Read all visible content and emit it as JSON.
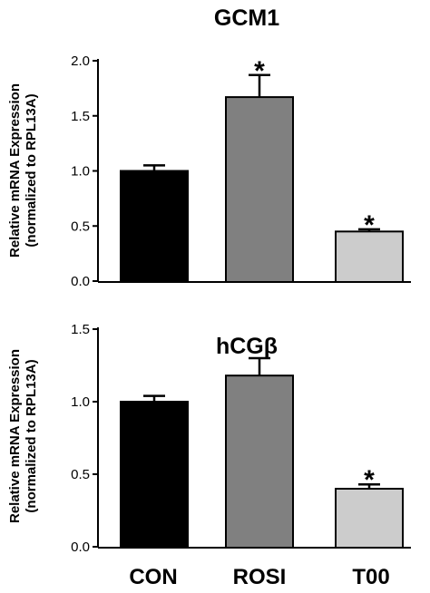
{
  "categories": [
    "CON",
    "ROSI",
    "T00"
  ],
  "chart_data": [
    {
      "type": "bar",
      "title": "GCM1",
      "ylabel": "Relative mRNA Expression",
      "ylabel_line2": "(normalized to RPL13A)",
      "categories": [
        "CON",
        "ROSI",
        "T00"
      ],
      "values": [
        1.0,
        1.67,
        0.45
      ],
      "errors": [
        0.05,
        0.2,
        0.02
      ],
      "significance": [
        "",
        "*",
        "*"
      ],
      "ylim": [
        0,
        2.0
      ],
      "yticks": [
        0.0,
        0.5,
        1.0,
        1.5,
        2.0
      ],
      "ytick_labels": [
        "0.0",
        "0.5",
        "1.0",
        "1.5",
        "2.0"
      ],
      "colors": [
        "#000000",
        "#808080",
        "#cccccc"
      ]
    },
    {
      "type": "bar",
      "title": "hCGβ",
      "ylabel": "Relative mRNA Expression",
      "ylabel_line2": "(normalized to RPL13A)",
      "categories": [
        "CON",
        "ROSI",
        "T00"
      ],
      "values": [
        1.0,
        1.18,
        0.4
      ],
      "errors": [
        0.04,
        0.12,
        0.03
      ],
      "significance": [
        "",
        "",
        "*"
      ],
      "ylim": [
        0,
        1.5
      ],
      "yticks": [
        0.0,
        0.5,
        1.0,
        1.5
      ],
      "ytick_labels": [
        "0.0",
        "0.5",
        "1.0",
        "1.5"
      ],
      "colors": [
        "#000000",
        "#808080",
        "#cccccc"
      ]
    }
  ]
}
